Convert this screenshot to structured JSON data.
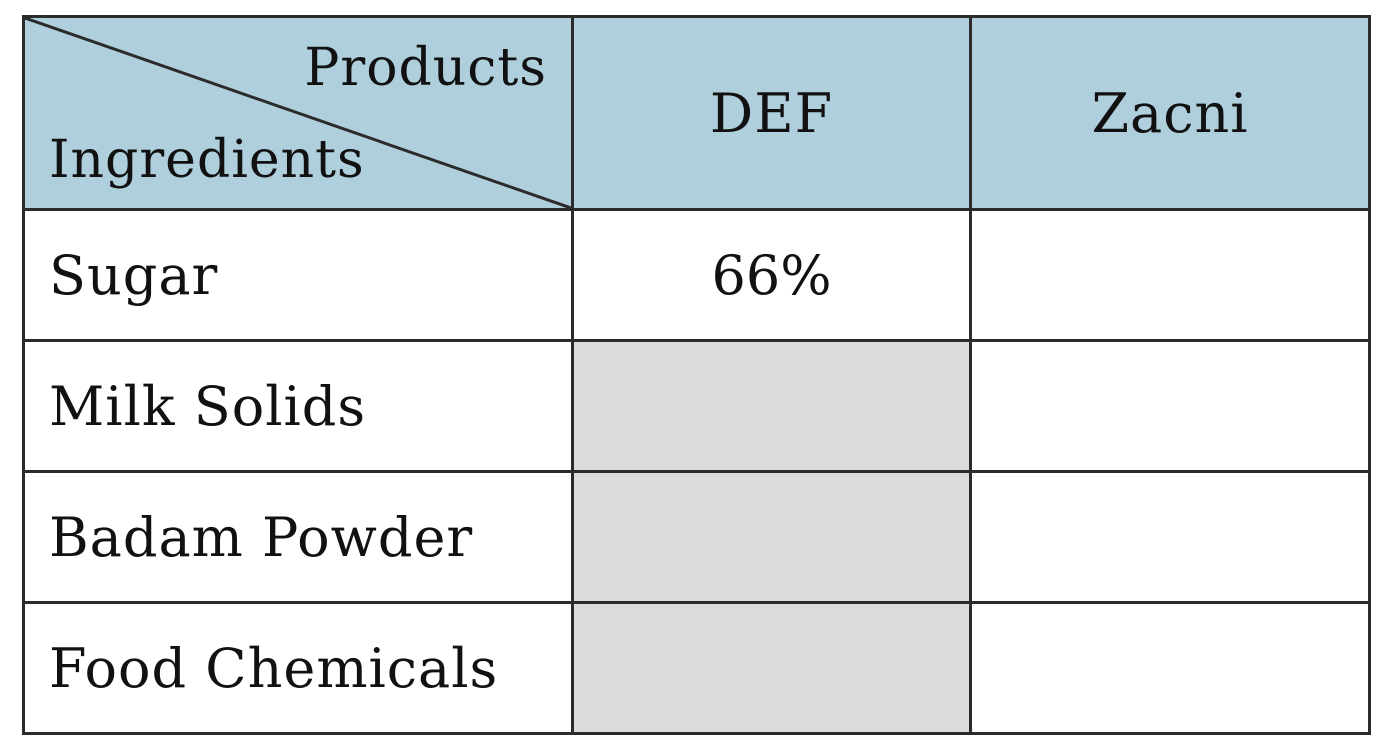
{
  "table": {
    "corner": {
      "column_header_label": "Products",
      "row_header_label": "Ingredients"
    },
    "columns": [
      "DEF",
      "Zacni"
    ],
    "rows": [
      {
        "label": "Sugar",
        "cells": [
          "66%",
          ""
        ]
      },
      {
        "label": "Milk Solids",
        "cells": [
          "",
          ""
        ]
      },
      {
        "label": "Badam Powder",
        "cells": [
          "",
          ""
        ]
      },
      {
        "label": "Food Chemicals",
        "cells": [
          "",
          ""
        ]
      }
    ],
    "shaded_cells": [
      {
        "row": "Milk Solids",
        "column": "DEF"
      },
      {
        "row": "Badam Powder",
        "column": "DEF"
      },
      {
        "row": "Food Chemicals",
        "column": "DEF"
      }
    ],
    "colors": {
      "header_background": "#afcfdd",
      "shaded_cell_background": "#dcdcdc",
      "border": "#2b2b2b"
    }
  }
}
